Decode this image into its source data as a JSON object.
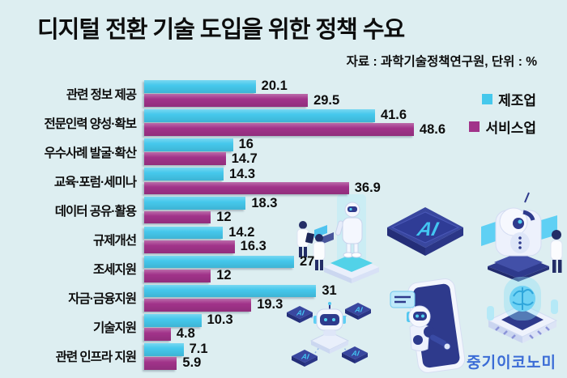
{
  "title": "디지털 전환 기술 도입을 위한 정책 수요",
  "source_note": "자료 : 과학기술정책연구원, 단위 : %",
  "logo_text": "중기이코노미",
  "colors": {
    "background": "#DDEEF1",
    "manufacturing_bar": "#45C8EC",
    "services_bar": "#A1338A",
    "text": "#0D0D0D",
    "logo_blue": "#3B6CD6"
  },
  "legend": {
    "position": "top-right",
    "items": [
      {
        "label": "제조업",
        "color": "#45C8EC"
      },
      {
        "label": "서비스업",
        "color": "#A1338A"
      }
    ]
  },
  "chart_data": {
    "type": "bar",
    "orientation": "horizontal",
    "title": "디지털 전환 기술 도입을 위한 정책 수요",
    "source": "자료 : 과학기술정책연구원, 단위 : %",
    "unit": "%",
    "grid": false,
    "value_labels": true,
    "legend_position": "top-right",
    "xlim": [
      0,
      50
    ],
    "categories": [
      "관련 정보 제공",
      "전문인력 양성·확보",
      "우수사례 발굴·확산",
      "교육·포럼·세미나",
      "데이터 공유·활용",
      "규제개선",
      "조세지원",
      "자금·금융지원",
      "기술지원",
      "관련 인프라 지원"
    ],
    "series": [
      {
        "name": "제조업",
        "color": "#45C8EC",
        "values": [
          20.1,
          41.6,
          16,
          14.3,
          18.3,
          14.2,
          27,
          31,
          10.3,
          7.1
        ]
      },
      {
        "name": "서비스업",
        "color": "#A1338A",
        "values": [
          29.5,
          48.6,
          14.7,
          36.9,
          12,
          16.3,
          12,
          19.3,
          4.8,
          5.9
        ]
      }
    ]
  },
  "labels": {
    "ai": "AI"
  },
  "illustrations": {
    "items": [
      "robot-on-display-with-researchers",
      "ai-chip",
      "robot-scanner-with-person",
      "robot-head-with-ai-chips",
      "robot-in-smartphone",
      "ai-brain-on-chip"
    ]
  }
}
